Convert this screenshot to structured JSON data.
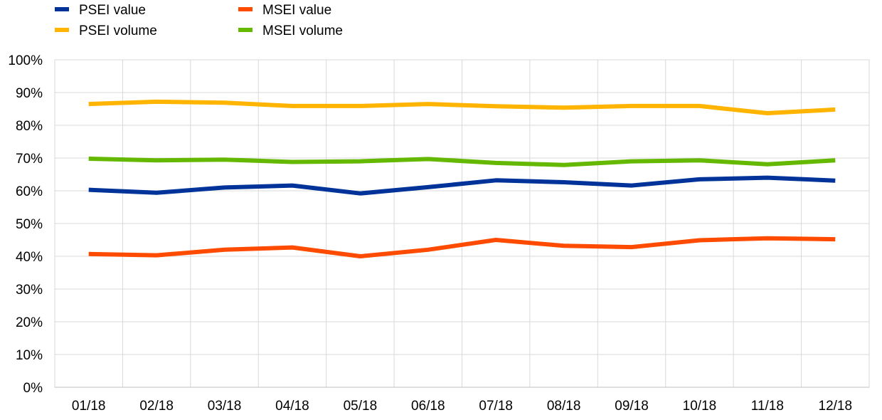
{
  "chart_data": {
    "type": "line",
    "categories": [
      "01/18",
      "02/18",
      "03/18",
      "04/18",
      "05/18",
      "06/18",
      "07/18",
      "08/18",
      "09/18",
      "10/18",
      "11/18",
      "12/18"
    ],
    "ylim": [
      0,
      100
    ],
    "y_ticks": [
      "0%",
      "10%",
      "20%",
      "30%",
      "40%",
      "50%",
      "60%",
      "70%",
      "80%",
      "90%",
      "100%"
    ],
    "grid": true,
    "legend_position": "top-left",
    "series": [
      {
        "name": "PSEI value",
        "color": "#003399",
        "values": [
          60.3,
          59.4,
          61.0,
          61.6,
          59.2,
          61.1,
          63.2,
          62.6,
          61.6,
          63.5,
          64.0,
          63.1
        ]
      },
      {
        "name": "MSEI value",
        "color": "#ff4b00",
        "values": [
          40.7,
          40.3,
          42.0,
          42.7,
          40.0,
          42.0,
          45.0,
          43.2,
          42.8,
          44.9,
          45.5,
          45.2
        ]
      },
      {
        "name": "PSEI volume",
        "color": "#ffb400",
        "values": [
          86.5,
          87.2,
          86.9,
          85.9,
          85.9,
          86.5,
          85.8,
          85.4,
          85.9,
          85.9,
          83.7,
          84.8
        ]
      },
      {
        "name": "MSEI volume",
        "color": "#65b800",
        "values": [
          69.8,
          69.3,
          69.5,
          68.8,
          69.0,
          69.7,
          68.5,
          67.9,
          69.0,
          69.3,
          68.1,
          69.3
        ]
      }
    ]
  }
}
